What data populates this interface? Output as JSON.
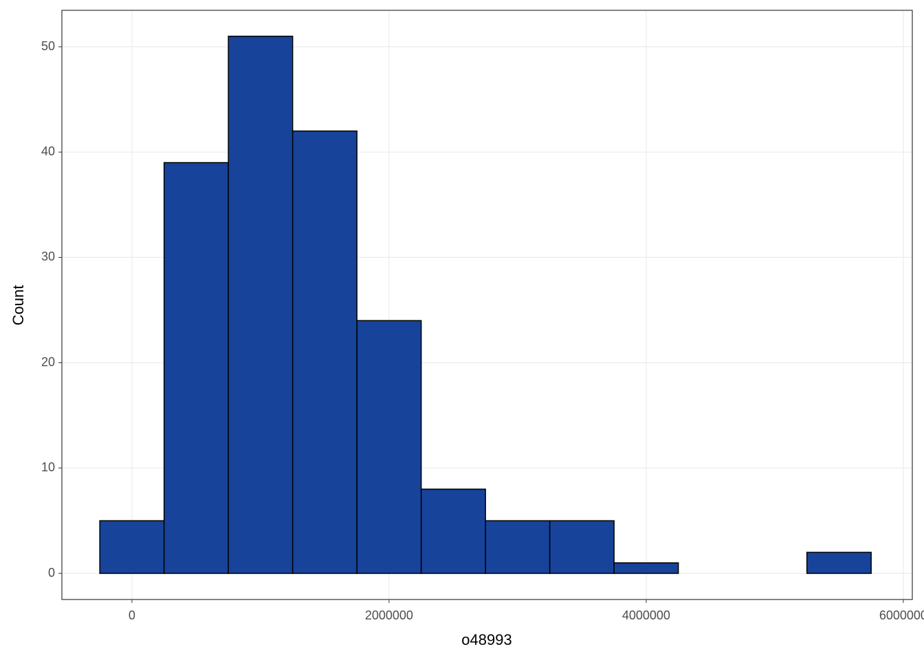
{
  "chart_data": {
    "type": "histogram",
    "x_label": "o48993",
    "y_label": "Count",
    "bins": [
      -250000,
      250000,
      750000,
      1250000,
      1750000,
      2250000,
      2750000,
      3250000,
      3750000,
      4250000,
      4750000,
      5250000,
      5750000
    ],
    "values": [
      5,
      39,
      51,
      42,
      24,
      8,
      5,
      5,
      1,
      0,
      0,
      2
    ],
    "color": "#17439a",
    "edge_color": "#000000",
    "xlim": [
      -545000,
      6070000
    ],
    "xticks": [
      0,
      2000000,
      4000000,
      6000000
    ],
    "ylim": [
      -2.48,
      53.46
    ],
    "yticks": [
      0,
      10,
      20,
      30,
      40,
      50
    ],
    "grid": true
  }
}
